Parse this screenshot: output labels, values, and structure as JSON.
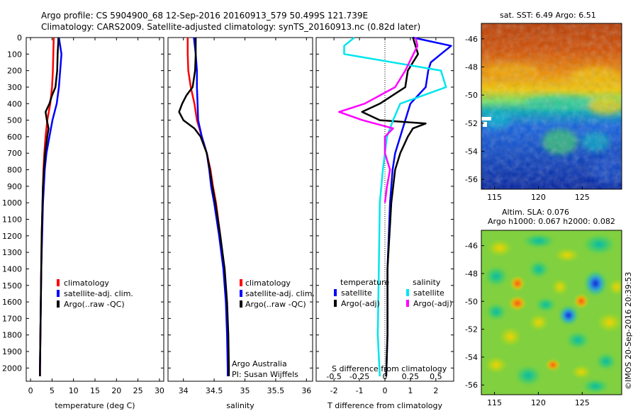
{
  "header": {
    "line1": "Argo profile: CS 5904900_68 12-Sep-2016 20160913_579 50.499S 121.739E",
    "line2": "Climatology: CARS2009. Satellite-adjusted climatology: synTS_20160913.nc (0.82d later)"
  },
  "footer": {
    "credit": "Argo Australia",
    "pi": "PI: Susan Wijffels",
    "timestamp": "©IMOS 20-Sep-2016 20:39:53"
  },
  "colors": {
    "climatology": "#ff0000",
    "satellite": "#0000ff",
    "argo": "#000000",
    "salinity_sat": "#00e5ee",
    "salinity_argo": "#ff00ff"
  },
  "chart_data": [
    {
      "type": "line",
      "panel": "temperature",
      "xlabel": "temperature (deg C)",
      "ylabel": "",
      "xlim": [
        -1,
        31
      ],
      "ylim": [
        2080,
        0
      ],
      "xticks": [
        "0",
        "5",
        "10",
        "15",
        "20",
        "25",
        "30"
      ],
      "yticks": [
        "0",
        "100",
        "200",
        "300",
        "400",
        "500",
        "600",
        "700",
        "800",
        "900",
        "1000",
        "1100",
        "1200",
        "1300",
        "1400",
        "1500",
        "1600",
        "1700",
        "1800",
        "1900",
        "2000"
      ],
      "legend": {
        "items": [
          "climatology",
          "satellite-adj. clim.",
          "Argo(..raw -QC)"
        ],
        "placement": "center-right"
      },
      "series": [
        {
          "name": "climatology",
          "color": "#ff0000",
          "depth": [
            0,
            100,
            200,
            300,
            400,
            500,
            600,
            700,
            800,
            900,
            1000,
            1200,
            1400,
            1600,
            1800,
            2000,
            2050
          ],
          "values": [
            5.4,
            5.3,
            5.2,
            5.0,
            4.6,
            3.9,
            3.5,
            3.2,
            3.0,
            2.9,
            2.8,
            2.6,
            2.5,
            2.4,
            2.3,
            2.2,
            2.2
          ]
        },
        {
          "name": "satellite-adj. clim.",
          "color": "#0000ff",
          "depth": [
            0,
            100,
            200,
            300,
            400,
            500,
            600,
            700,
            800,
            900,
            1000,
            1200,
            1400,
            1600,
            1800,
            2000,
            2050
          ],
          "values": [
            6.6,
            7.2,
            6.9,
            6.6,
            6.1,
            5.1,
            4.4,
            3.7,
            3.3,
            3.1,
            2.9,
            2.7,
            2.5,
            2.4,
            2.3,
            2.2,
            2.2
          ]
        },
        {
          "name": "Argo(..raw -QC)",
          "color": "#000000",
          "depth": [
            0,
            100,
            200,
            300,
            350,
            400,
            450,
            500,
            550,
            600,
            700,
            800,
            900,
            1000,
            1200,
            1400,
            1600,
            1800,
            2000,
            2050
          ],
          "values": [
            6.5,
            6.3,
            6.2,
            5.8,
            5.0,
            4.4,
            3.5,
            3.8,
            4.2,
            3.9,
            3.4,
            3.1,
            2.9,
            2.8,
            2.6,
            2.5,
            2.4,
            2.3,
            2.2,
            2.2
          ]
        }
      ]
    },
    {
      "type": "line",
      "panel": "salinity",
      "xlabel": "salinity",
      "ylabel": "",
      "xlim": [
        33.75,
        36.1
      ],
      "ylim": [
        2080,
        0
      ],
      "xticks": [
        "34",
        "34.5",
        "35",
        "35.5",
        "36"
      ],
      "legend": {
        "items": [
          "climatology",
          "satellite-adj. clim.",
          "Argo(..raw -QC)"
        ],
        "placement": "center-right"
      },
      "series": [
        {
          "name": "climatology",
          "color": "#ff0000",
          "depth": [
            0,
            100,
            200,
            300,
            400,
            500,
            600,
            700,
            800,
            900,
            1000,
            1200,
            1400,
            1600,
            1800,
            2000,
            2050
          ],
          "values": [
            34.07,
            34.07,
            34.08,
            34.12,
            34.18,
            34.22,
            34.3,
            34.38,
            34.44,
            34.48,
            34.53,
            34.6,
            34.66,
            34.7,
            34.72,
            34.73,
            34.73
          ]
        },
        {
          "name": "satellite-adj. clim.",
          "color": "#0000ff",
          "depth": [
            0,
            100,
            200,
            300,
            400,
            500,
            600,
            700,
            800,
            900,
            1000,
            1200,
            1400,
            1600,
            1800,
            2000,
            2050
          ],
          "values": [
            34.17,
            34.2,
            34.22,
            34.22,
            34.23,
            34.24,
            34.3,
            34.38,
            34.42,
            34.45,
            34.5,
            34.58,
            34.65,
            34.69,
            34.71,
            34.72,
            34.72
          ]
        },
        {
          "name": "Argo(..raw -QC)",
          "color": "#000000",
          "depth": [
            0,
            100,
            200,
            300,
            350,
            400,
            450,
            500,
            550,
            600,
            700,
            800,
            900,
            1000,
            1200,
            1400,
            1600,
            1800,
            2000,
            2050
          ],
          "values": [
            34.2,
            34.2,
            34.19,
            34.15,
            34.05,
            33.98,
            33.93,
            34.0,
            34.18,
            34.28,
            34.38,
            34.43,
            34.47,
            34.52,
            34.6,
            34.67,
            34.71,
            34.73,
            34.74,
            34.74
          ]
        }
      ]
    },
    {
      "type": "line",
      "panel": "difference",
      "xlabel": "T difference from climatology",
      "top_label": "S difference from climatology",
      "xlim": [
        -2.7,
        2.7
      ],
      "ylim": [
        2080,
        0
      ],
      "xticks": [
        "-2",
        "-1",
        "0",
        "1",
        "2"
      ],
      "top_ticks": [
        "-0.5",
        "-0.25",
        "0",
        "0.25",
        "0.5"
      ],
      "legend": {
        "temperature_title": "temperature",
        "salinity_title": "salinity",
        "items": [
          "satellite",
          "Argo(-adj)",
          "satellite",
          "Argo(-adj)"
        ],
        "placement": "center"
      },
      "series": [
        {
          "name": "satellite",
          "group": "temperature",
          "color": "#0000ff",
          "depth": [
            0,
            50,
            100,
            150,
            200,
            300,
            400,
            500,
            600,
            700,
            800,
            1000,
            1400,
            1800,
            2050
          ],
          "values": [
            1.1,
            2.6,
            2.2,
            1.8,
            1.7,
            1.6,
            1.0,
            0.8,
            0.6,
            0.4,
            0.3,
            0.2,
            0.1,
            0.1,
            0.05
          ]
        },
        {
          "name": "Argo(-adj)",
          "group": "temperature",
          "color": "#000000",
          "depth": [
            0,
            100,
            200,
            300,
            400,
            450,
            500,
            520,
            550,
            600,
            700,
            800,
            1000,
            1400,
            1800,
            2050
          ],
          "values": [
            1.1,
            1.3,
            0.9,
            0.8,
            -0.2,
            -0.9,
            -0.2,
            1.6,
            1.1,
            0.9,
            0.6,
            0.4,
            0.25,
            0.1,
            0.1,
            0.05
          ]
        },
        {
          "name": "satellite",
          "group": "salinity",
          "color": "#00e5ee",
          "depth": [
            0,
            50,
            100,
            200,
            300,
            400,
            500,
            600,
            800,
            1000,
            1400,
            1800,
            2050
          ],
          "values": [
            -0.3,
            -0.4,
            -0.4,
            0.55,
            0.6,
            0.15,
            0.08,
            0.02,
            -0.02,
            -0.05,
            -0.06,
            -0.07,
            -0.05
          ]
        },
        {
          "name": "Argo(-adj)",
          "group": "salinity",
          "color": "#ff00ff",
          "depth": [
            0,
            50,
            100,
            200,
            300,
            400,
            450,
            500,
            550,
            600,
            700,
            800,
            900,
            1000
          ],
          "values": [
            0.3,
            0.32,
            0.28,
            0.2,
            0.1,
            -0.2,
            -0.45,
            -0.22,
            0.08,
            0.0,
            0.0,
            0.05,
            0.02,
            0.0
          ]
        }
      ]
    },
    {
      "type": "heatmap",
      "panel": "sst_map",
      "title": "sat. SST: 6.49 Argo: 6.51",
      "xticks": [
        "115",
        "120",
        "125"
      ],
      "yticks": [
        "-46",
        "-48",
        "-50",
        "-52",
        "-54",
        "-56"
      ],
      "xlim": [
        113.5,
        129.5
      ],
      "ylim": [
        -56.7,
        -44.9
      ],
      "colormap": "jet"
    },
    {
      "type": "heatmap",
      "panel": "sla_map",
      "title_line1": "Altim. SLA: 0.076",
      "title_line2": "Argo h1000: 0.067 h2000: 0.082",
      "xticks": [
        "115",
        "120",
        "125"
      ],
      "yticks": [
        "-46",
        "-48",
        "-50",
        "-52",
        "-54",
        "-56"
      ],
      "xlim": [
        113.5,
        129.5
      ],
      "ylim": [
        -56.7,
        -44.9
      ],
      "colormap": "jet"
    }
  ]
}
